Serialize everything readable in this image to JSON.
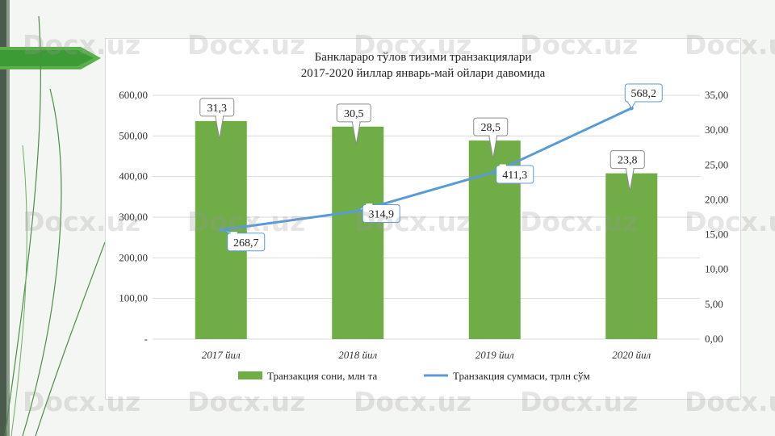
{
  "brand": {
    "accent_green": "#70ad47",
    "line_blue": "#5b9bd5",
    "decor_green": "#3d9b35",
    "watermark_text": "Docx.uz"
  },
  "chart_data": {
    "type": "bar",
    "title": "Банклараро тўлов тизими транзакциялари",
    "subtitle": "2017-2020 йиллар январь-май ойлари давомида",
    "categories": [
      "2017 йил",
      "2018 йил",
      "2019 йил",
      "2020 йил"
    ],
    "series": [
      {
        "name": "Транзакция сони, млн та",
        "type": "bar",
        "axis": "right",
        "color": "#70ad47",
        "values": [
          31.3,
          30.5,
          28.5,
          23.8
        ],
        "labels": [
          "31,3",
          "30,5",
          "28,5",
          "23,8"
        ]
      },
      {
        "name": "Транзакция суммаси, трлн сўм",
        "type": "line",
        "axis": "left",
        "color": "#5b9bd5",
        "values": [
          268.7,
          314.9,
          411.3,
          568.2
        ],
        "labels": [
          "268,7",
          "314,9",
          "411,3",
          "568,2"
        ]
      }
    ],
    "y_left": {
      "range": [
        0,
        600
      ],
      "ticks": [
        0,
        100,
        200,
        300,
        400,
        500,
        600
      ],
      "tick_labels": [
        "-",
        "100,00",
        "200,00",
        "300,00",
        "400,00",
        "500,00",
        "600,00"
      ]
    },
    "y_right": {
      "range": [
        0,
        35
      ],
      "ticks": [
        0,
        5,
        10,
        15,
        20,
        25,
        30,
        35
      ],
      "tick_labels": [
        "0,00",
        "5,00",
        "10,00",
        "15,00",
        "20,00",
        "25,00",
        "30,00",
        "35,00"
      ]
    },
    "grid": true,
    "legend_position": "bottom"
  }
}
